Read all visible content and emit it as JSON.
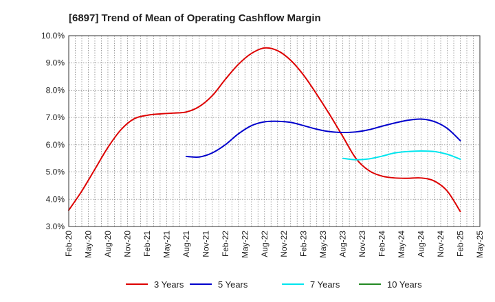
{
  "chart_data": {
    "type": "line",
    "title": "[6897]  Trend of Mean of Operating Cashflow Margin",
    "xlabel": "",
    "ylabel": "",
    "ylim": [
      3.0,
      10.0
    ],
    "y_ticks": [
      "3.0%",
      "4.0%",
      "5.0%",
      "6.0%",
      "7.0%",
      "8.0%",
      "9.0%",
      "10.0%"
    ],
    "y_tick_values": [
      3.0,
      4.0,
      5.0,
      6.0,
      7.0,
      8.0,
      9.0,
      10.0
    ],
    "x_ticks": [
      "Feb-20",
      "May-20",
      "Aug-20",
      "Nov-20",
      "Feb-21",
      "May-21",
      "Aug-21",
      "Nov-21",
      "Feb-22",
      "May-22",
      "Aug-22",
      "Nov-22",
      "Feb-23",
      "May-23",
      "Aug-23",
      "Nov-23",
      "Feb-24",
      "May-24",
      "Aug-24",
      "Nov-24",
      "Feb-25",
      "May-25"
    ],
    "grid": true,
    "legend_position": "bottom",
    "series": [
      {
        "name": "3 Years",
        "color": "#dd0000",
        "values": [
          3.6,
          4.3,
          5.1,
          5.9,
          6.55,
          6.95,
          7.08,
          7.13,
          7.16,
          7.2,
          7.4,
          7.8,
          8.4,
          8.95,
          9.35,
          9.55,
          9.45,
          9.1,
          8.55,
          7.85,
          7.1,
          6.3,
          5.5,
          5.05,
          4.85,
          4.78,
          4.77,
          4.78,
          4.67,
          4.3,
          3.55
        ]
      },
      {
        "name": "5 Years",
        "color": "#0000cc",
        "values": [
          null,
          null,
          null,
          null,
          null,
          null,
          null,
          null,
          null,
          5.57,
          5.55,
          5.7,
          6.0,
          6.4,
          6.7,
          6.84,
          6.86,
          6.82,
          6.7,
          6.57,
          6.48,
          6.45,
          6.47,
          6.55,
          6.68,
          6.8,
          6.9,
          6.94,
          6.85,
          6.6,
          6.15
        ]
      },
      {
        "name": "7 Years",
        "color": "#00e5ee",
        "values": [
          null,
          null,
          null,
          null,
          null,
          null,
          null,
          null,
          null,
          null,
          null,
          null,
          null,
          null,
          null,
          null,
          null,
          null,
          null,
          null,
          null,
          5.5,
          5.45,
          5.48,
          5.58,
          5.7,
          5.75,
          5.77,
          5.75,
          5.65,
          5.47
        ]
      },
      {
        "name": "10 Years",
        "color": "#228822",
        "values": []
      }
    ]
  }
}
